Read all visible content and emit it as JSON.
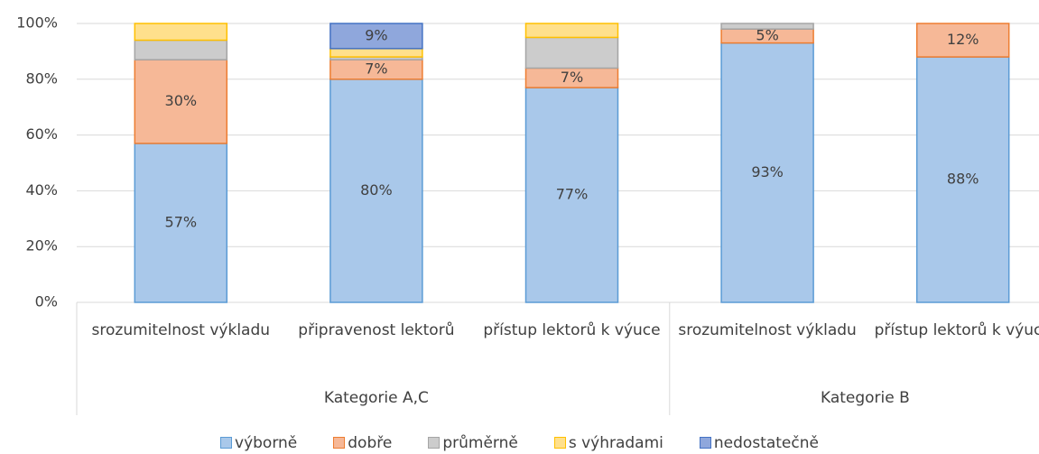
{
  "chart_data": {
    "type": "stacked_bar",
    "groups": [
      {
        "name": "Kategorie A,C",
        "categories": [
          "srozumitelnost výkladu",
          "připravenost lektorů",
          "přístup lektorů k výuce"
        ]
      },
      {
        "name": "Kategorie B",
        "categories": [
          "srozumitelnost výkladu",
          "přístup lektorů k výuce"
        ]
      }
    ],
    "series": [
      {
        "name": "výborně",
        "color": "#a9c8ea",
        "edgecolor": "#5b9bd5",
        "values": [
          57,
          80,
          77,
          93,
          88
        ],
        "value_labels": [
          "57%",
          "80%",
          "77%",
          "93%",
          "88%"
        ]
      },
      {
        "name": "dobře",
        "color": "#f6b897",
        "edgecolor": "#ed7d31",
        "values": [
          30,
          7,
          7,
          5,
          12
        ],
        "value_labels": [
          "30%",
          "7%",
          "7%",
          "5%",
          "12%"
        ]
      },
      {
        "name": "průměrně",
        "color": "#cccccc",
        "edgecolor": "#a5a5a5",
        "values": [
          7,
          1,
          11,
          2,
          0
        ],
        "value_labels": [
          null,
          null,
          null,
          null,
          null
        ]
      },
      {
        "name": "s výhradami",
        "color": "#ffe08c",
        "edgecolor": "#ffc000",
        "values": [
          6,
          3,
          5,
          0,
          0
        ],
        "value_labels": [
          null,
          null,
          null,
          null,
          null
        ]
      },
      {
        "name": "nedostatečně",
        "color": "#8fa7dc",
        "edgecolor": "#4472c4",
        "values": [
          0,
          9,
          0,
          0,
          0
        ],
        "value_labels": [
          null,
          "9%",
          null,
          null,
          null
        ]
      }
    ],
    "ylim": [
      0,
      100
    ],
    "yticks": [
      {
        "value": 0,
        "label": "0%"
      },
      {
        "value": 20,
        "label": "20%"
      },
      {
        "value": 40,
        "label": "40%"
      },
      {
        "value": 60,
        "label": "60%"
      },
      {
        "value": 80,
        "label": "80%"
      },
      {
        "value": 100,
        "label": "100%"
      }
    ],
    "grid": true,
    "legend": "bottom"
  }
}
